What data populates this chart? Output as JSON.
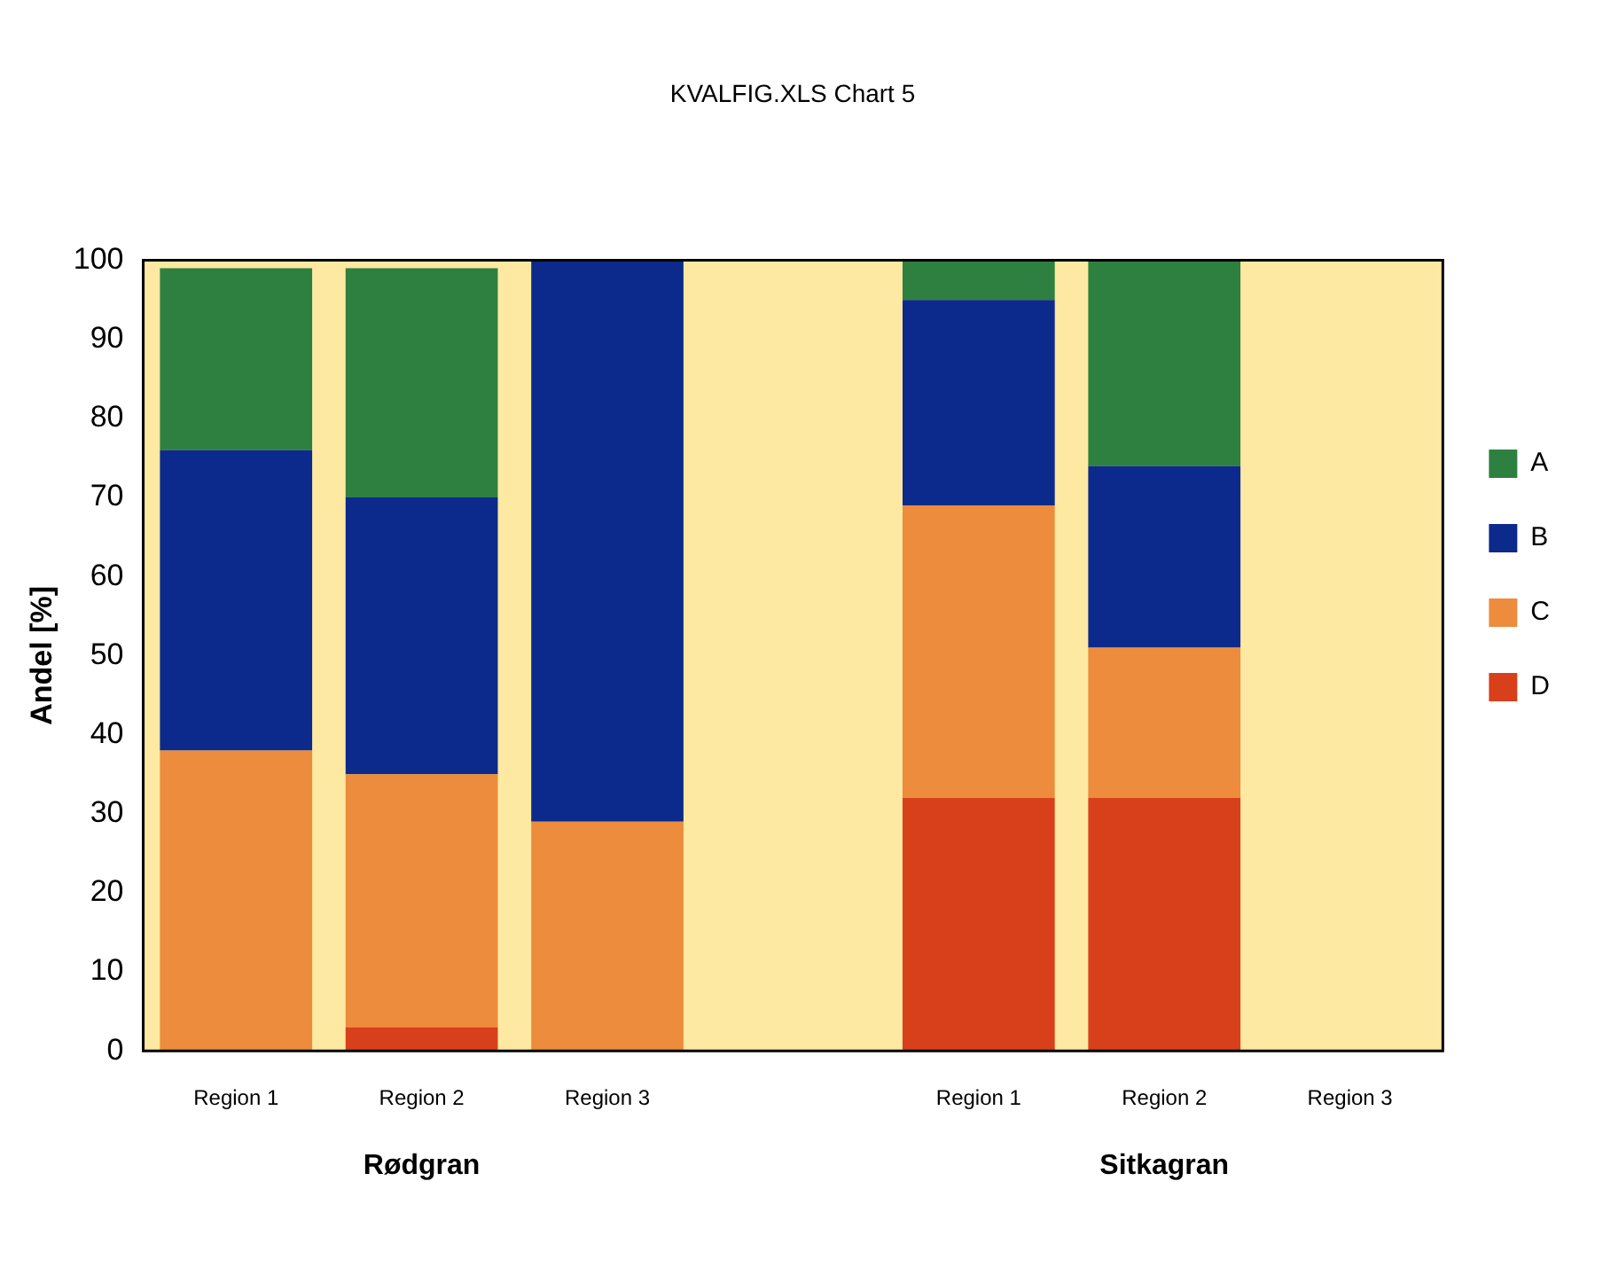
{
  "chart_data": {
    "type": "bar",
    "title": "KVALFIG.XLS Chart 5",
    "ylabel": "Andel [%]",
    "stacked": true,
    "categories": [
      "Region 1",
      "Region 2",
      "Region 3",
      null,
      "Region 1",
      "Region 2",
      "Region 3"
    ],
    "series": [
      {
        "name": "D",
        "color": "#d8401c",
        "values": [
          0,
          3,
          0,
          null,
          32,
          32,
          null
        ]
      },
      {
        "name": "C",
        "color": "#ec8c3c",
        "values": [
          38,
          32,
          29,
          null,
          37,
          19,
          null
        ]
      },
      {
        "name": "B",
        "color": "#0c2a8c",
        "values": [
          38,
          35,
          71,
          null,
          26,
          23,
          null
        ]
      },
      {
        "name": "A",
        "color": "#2e8040",
        "values": [
          23,
          29,
          0,
          null,
          5,
          26,
          null
        ]
      }
    ],
    "ylim": [
      0,
      100
    ],
    "yticks": [
      0,
      10,
      20,
      30,
      40,
      50,
      60,
      70,
      80,
      90,
      100
    ],
    "grid": false,
    "legend": "right",
    "annotations": [
      "Rødgran",
      "Sitkagran"
    ]
  }
}
